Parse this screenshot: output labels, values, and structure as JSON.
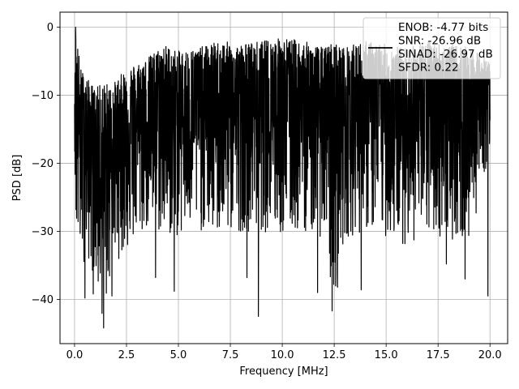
{
  "chart_data": {
    "type": "line",
    "xlabel": "Frequency [MHz]",
    "ylabel": "PSD [dB]",
    "xlim": [
      -0.7,
      20.85
    ],
    "ylim": [
      -46.5,
      2.2
    ],
    "xticks": [
      0.0,
      2.5,
      5.0,
      7.5,
      10.0,
      12.5,
      15.0,
      17.5,
      20.0
    ],
    "xtick_labels": [
      "0.0",
      "2.5",
      "5.0",
      "7.5",
      "10.0",
      "12.5",
      "15.0",
      "17.5",
      "20.0"
    ],
    "yticks": [
      0,
      -10,
      -20,
      -30,
      -40
    ],
    "ytick_labels": [
      "0",
      "−10",
      "−20",
      "−30",
      "−40"
    ],
    "grid": true,
    "legend": {
      "location": "top-right",
      "entries": [
        "ENOB: -4.77 bits",
        "SNR: -26.96 dB",
        "SINAD: -26.97 dB",
        "SFDR: 0.22"
      ]
    },
    "series": [
      {
        "color": "#000000",
        "note_x_range": [
          0,
          20
        ],
        "envelope": {
          "x": [
            0.0,
            0.05,
            0.3,
            0.6,
            1.0,
            1.4,
            1.8,
            2.5,
            3.5,
            4.3,
            5.0,
            6.0,
            7.0,
            8.0,
            9.0,
            10.0,
            11.0,
            12.0,
            12.5,
            13.0,
            14.0,
            15.0,
            16.0,
            17.0,
            18.0,
            19.0,
            20.0
          ],
          "upper": [
            -12.0,
            0.0,
            -6.0,
            -7.5,
            -9.0,
            -8.0,
            -8.5,
            -6.0,
            -4.5,
            -2.5,
            -3.5,
            -3.0,
            -2.0,
            -2.5,
            -2.0,
            -1.5,
            -2.0,
            -3.0,
            -2.0,
            -3.0,
            -2.0,
            -2.5,
            -3.0,
            -2.0,
            -2.5,
            -3.0,
            -5.0
          ],
          "lower": [
            -16.0,
            -31.0,
            -35.0,
            -34.0,
            -37.0,
            -44.0,
            -35.0,
            -33.0,
            -30.0,
            -31.0,
            -31.0,
            -30.0,
            -31.0,
            -30.0,
            -30.0,
            -31.0,
            -30.0,
            -31.0,
            -42.0,
            -31.0,
            -30.0,
            -31.0,
            -32.0,
            -31.0,
            -31.0,
            -32.0,
            -18.0
          ]
        },
        "notable_minima": [
          {
            "x": 0.5,
            "y": -39.8
          },
          {
            "x": 0.9,
            "y": -39.2
          },
          {
            "x": 1.4,
            "y": -44.2
          },
          {
            "x": 1.8,
            "y": -39.5
          },
          {
            "x": 3.9,
            "y": -36.8
          },
          {
            "x": 4.8,
            "y": -38.8
          },
          {
            "x": 8.3,
            "y": -36.8
          },
          {
            "x": 8.85,
            "y": -42.5
          },
          {
            "x": 11.7,
            "y": -39.0
          },
          {
            "x": 12.4,
            "y": -41.7
          },
          {
            "x": 13.8,
            "y": -38.6
          },
          {
            "x": 17.9,
            "y": -34.8
          },
          {
            "x": 18.8,
            "y": -37.0
          },
          {
            "x": 19.9,
            "y": -39.5
          }
        ],
        "peak": {
          "x": 0.05,
          "y": 0.0
        }
      }
    ]
  }
}
